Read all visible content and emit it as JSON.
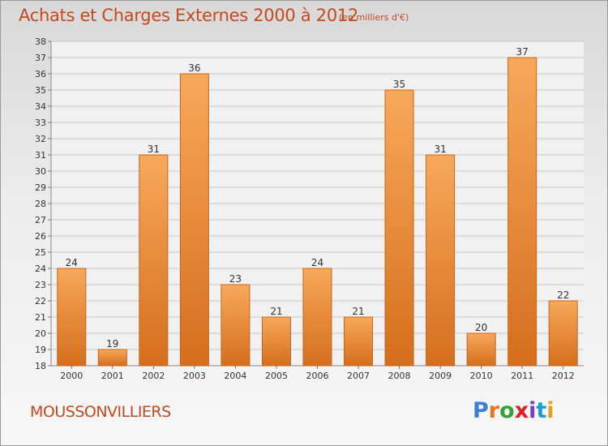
{
  "header": {
    "title": "Achats et Charges Externes 2000 à 2012",
    "subtitle": "(en milliers d'€)"
  },
  "footer": {
    "commune": "MOUSSONVILLIERS",
    "brand_letters": [
      "P",
      "r",
      "o",
      "x",
      "i",
      "t",
      "i"
    ],
    "brand_colors": [
      "#3a7fd0",
      "#e8741c",
      "#33a33a",
      "#e02020",
      "#7a3cc2",
      "#1f9ad6",
      "#e0a21c"
    ]
  },
  "colors": {
    "bar_top": "#f7a95a",
    "bar_bottom": "#d56e1c",
    "bar_edge": "#c7631a",
    "accent_text": "#c24a1e",
    "grid": "#c8c8c8",
    "axis_text": "#333333"
  },
  "chart_data": {
    "type": "bar",
    "categories": [
      "2000",
      "2001",
      "2002",
      "2003",
      "2004",
      "2005",
      "2006",
      "2007",
      "2008",
      "2009",
      "2010",
      "2011",
      "2012"
    ],
    "values": [
      24,
      19,
      31,
      36,
      23,
      21,
      24,
      21,
      35,
      31,
      20,
      37,
      22
    ],
    "data_labels": [
      "24",
      "19",
      "31",
      "36",
      "23",
      "21",
      "24",
      "21",
      "35",
      "31",
      "20",
      "37",
      "22"
    ],
    "yticks": [
      "18",
      "19",
      "20",
      "21",
      "22",
      "23",
      "24",
      "25",
      "26",
      "27",
      "28",
      "29",
      "30",
      "31",
      "32",
      "33",
      "34",
      "35",
      "36",
      "37",
      "38"
    ],
    "title": "Achats et Charges Externes 2000 à 2012",
    "xlabel": "",
    "ylabel": "",
    "ylim": [
      18,
      38
    ],
    "grid": true
  }
}
